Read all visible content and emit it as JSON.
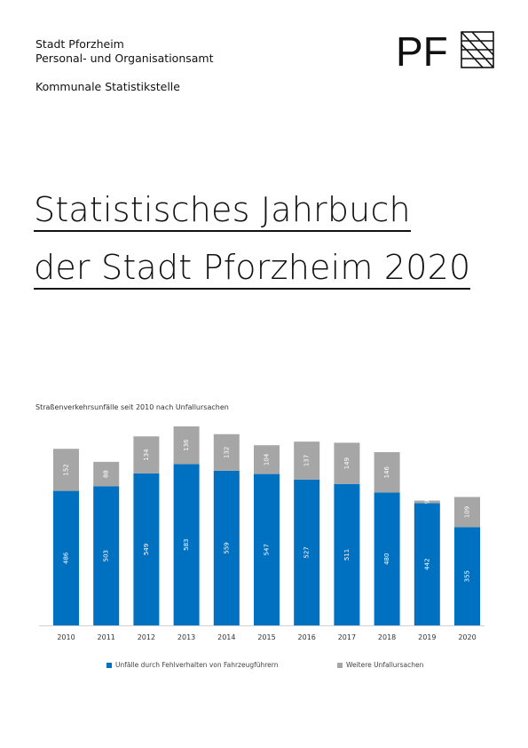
{
  "header": {
    "org_line1": "Stadt Pforzheim",
    "org_line2": "Personal- und Organisationsamt",
    "dept": "Kommunale Statistikstelle",
    "logo_text": "PF"
  },
  "title": {
    "line1": "Statistisches Jahrbuch",
    "line2": "der Stadt Pforzheim 2020"
  },
  "chart_data": {
    "type": "bar",
    "title": "Straßenverkehrsunfälle seit 2010 nach Unfallursachen",
    "categories": [
      "2010",
      "2011",
      "2012",
      "2013",
      "2014",
      "2015",
      "2016",
      "2017",
      "2018",
      "2019",
      "2020"
    ],
    "series": [
      {
        "name": "Unfälle durch Fehlverhalten von Fahrzeugführern",
        "color": "#0070c0",
        "values": [
          486,
          503,
          549,
          583,
          559,
          547,
          527,
          511,
          480,
          442,
          355
        ]
      },
      {
        "name": "Weitere Unfallursachen",
        "color": "#a6a6a6",
        "values": [
          152,
          88,
          134,
          136,
          132,
          104,
          137,
          149,
          146,
          9,
          109
        ]
      }
    ],
    "stacked": true
  }
}
